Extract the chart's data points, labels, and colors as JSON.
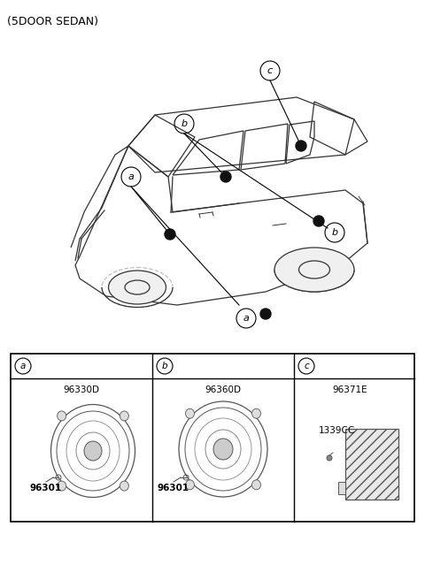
{
  "title": "(5DOOR SEDAN)",
  "background_color": "#ffffff",
  "line_color": "#000000",
  "text_color": "#000000",
  "gray_color": "#888888",
  "light_gray": "#cccccc",
  "panel_labels": [
    "a",
    "b",
    "c"
  ],
  "panel_parts_top": [
    "96330D",
    "96360D",
    "96371E"
  ],
  "panel_parts_bottom": [
    "96301",
    "96301",
    "1339CC"
  ],
  "fig_width": 4.8,
  "fig_height": 6.56,
  "dpi": 100
}
